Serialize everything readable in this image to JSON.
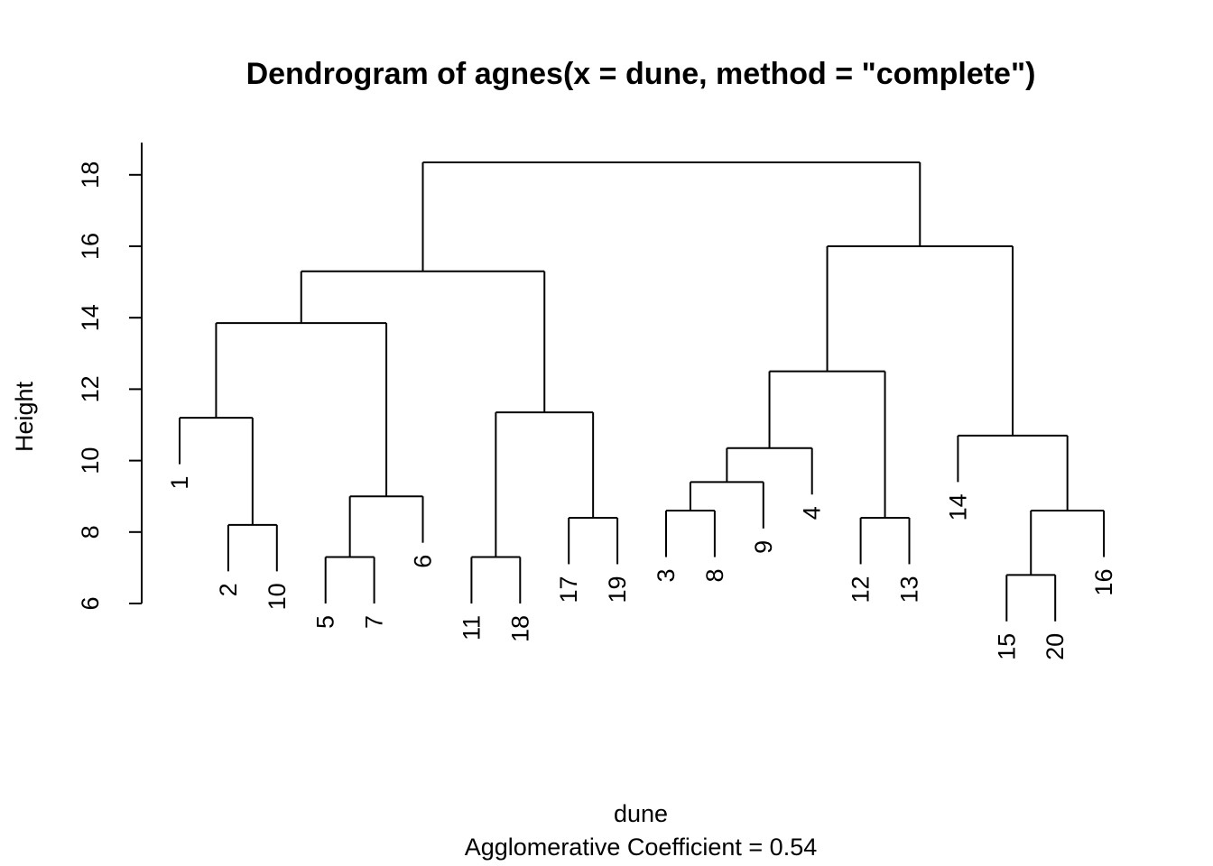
{
  "chart_data": {
    "type": "dendrogram",
    "title": "Dendrogram of  agnes(x = dune, method = \"complete\")",
    "xlabel": "dune",
    "sub": "Agglomerative Coefficient =  0.54",
    "ylabel": "Height",
    "ylim": [
      6,
      18.9
    ],
    "yticks": [
      6,
      8,
      10,
      12,
      14,
      16,
      18
    ],
    "hang": 0.1,
    "order": [
      "1",
      "2",
      "10",
      "5",
      "7",
      "6",
      "11",
      "18",
      "17",
      "19",
      "3",
      "8",
      "9",
      "4",
      "12",
      "13",
      "14",
      "15",
      "20",
      "16"
    ],
    "merges": [
      {
        "left": "15",
        "right": "20",
        "height": 6.8
      },
      {
        "left": "5",
        "right": "7",
        "height": 7.3
      },
      {
        "left": "11",
        "right": "18",
        "height": 7.3
      },
      {
        "left": "2",
        "right": "10",
        "height": 8.2
      },
      {
        "left": "17",
        "right": "19",
        "height": 8.4
      },
      {
        "left": "12",
        "right": "13",
        "height": 8.4
      },
      {
        "left": "3",
        "right": "8",
        "height": 8.6
      },
      {
        "left": "[15,20]",
        "right": "16",
        "height": 8.6
      },
      {
        "left": "[5,7]",
        "right": "6",
        "height": 9.0
      },
      {
        "left": "[3,8]",
        "right": "9",
        "height": 9.4
      },
      {
        "left": "[3,8,9]",
        "right": "4",
        "height": 10.35
      },
      {
        "left": "14",
        "right": "[15,20,16]",
        "height": 10.7
      },
      {
        "left": "1",
        "right": "[2,10]",
        "height": 11.2
      },
      {
        "left": "[11,18]",
        "right": "[17,19]",
        "height": 11.35
      },
      {
        "left": "[3,8,9,4]",
        "right": "[12,13]",
        "height": 12.5
      },
      {
        "left": "[1,2,10]",
        "right": "[5,7,6]",
        "height": 13.85
      },
      {
        "left": "[1,...,6]",
        "right": "[11,18,17,19]",
        "height": 15.3
      },
      {
        "left": "[3,...,13]",
        "right": "[14,15,20,16]",
        "height": 16.0
      },
      {
        "left": "[1,...,19]",
        "right": "[3,...,16]",
        "height": 18.35
      }
    ]
  }
}
